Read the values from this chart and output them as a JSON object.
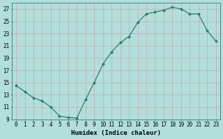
{
  "x": [
    0,
    1,
    2,
    3,
    4,
    5,
    6,
    7,
    8,
    9,
    10,
    11,
    12,
    13,
    14,
    15,
    16,
    17,
    18,
    19,
    20,
    21,
    22,
    23
  ],
  "y": [
    14.5,
    13.5,
    12.5,
    12.0,
    11.0,
    9.5,
    9.3,
    9.2,
    12.2,
    15.0,
    18.0,
    20.0,
    21.5,
    22.5,
    24.8,
    26.2,
    26.5,
    26.8,
    27.3,
    27.0,
    26.2,
    26.2,
    23.5,
    21.8
  ],
  "line_color": "#2d7d6e",
  "marker": "D",
  "marker_size": 2.0,
  "bg_color": "#b2dfdb",
  "grid_color": "#d0eeea",
  "xlabel": "Humidex (Indice chaleur)",
  "xlim": [
    -0.5,
    23.5
  ],
  "ylim": [
    9,
    28
  ],
  "yticks": [
    9,
    11,
    13,
    15,
    17,
    19,
    21,
    23,
    25,
    27
  ],
  "xticks": [
    0,
    1,
    2,
    3,
    4,
    5,
    6,
    7,
    8,
    9,
    10,
    11,
    12,
    13,
    14,
    15,
    16,
    17,
    18,
    19,
    20,
    21,
    22,
    23
  ],
  "label_fontsize": 6.5,
  "tick_fontsize": 5.5
}
